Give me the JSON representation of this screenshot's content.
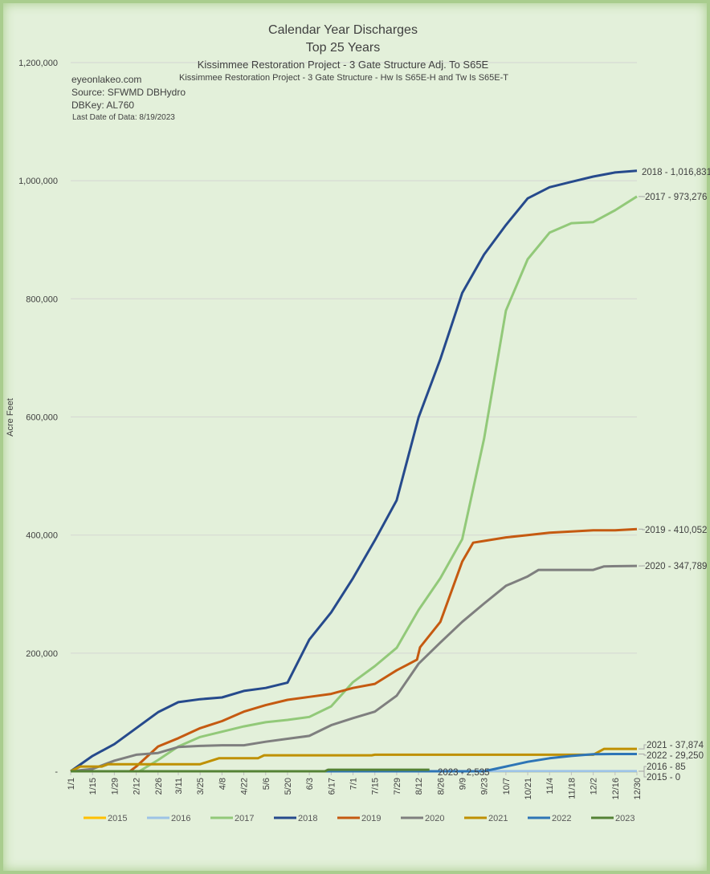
{
  "chart_data": {
    "type": "line",
    "title": "Calendar Year Discharges",
    "subtitle": "Top 25 Years",
    "subtitle2": "Kissimmee Restoration Project - 3 Gate Structure Adj. To S65E",
    "subtitle3": "Kissimmee Restoration Project - 3 Gate Structure - Hw Is S65E-H and Tw Is S65E-T",
    "notes": [
      "eyeonlakeo.com",
      "Source: SFWMD DBHydro",
      "DBKey: AL760",
      "Last Date of Data: 8/19/2023"
    ],
    "xlabel": "",
    "ylabel": "Acre Feet",
    "ylim": [
      0,
      1200000
    ],
    "xlim_days": [
      0,
      363
    ],
    "y_ticks": [
      {
        "value": 0,
        "label": "-"
      },
      {
        "value": 200000,
        "label": "200,000"
      },
      {
        "value": 400000,
        "label": "400,000"
      },
      {
        "value": 600000,
        "label": "600,000"
      },
      {
        "value": 800000,
        "label": "800,000"
      },
      {
        "value": 1000000,
        "label": "1,000,000"
      },
      {
        "value": 1200000,
        "label": "1,200,000"
      }
    ],
    "x_ticks": [
      {
        "day": 0,
        "label": "1/1"
      },
      {
        "day": 14,
        "label": "1/15"
      },
      {
        "day": 28,
        "label": "1/29"
      },
      {
        "day": 42,
        "label": "2/12"
      },
      {
        "day": 56,
        "label": "2/26"
      },
      {
        "day": 69,
        "label": "3/11"
      },
      {
        "day": 83,
        "label": "3/25"
      },
      {
        "day": 97,
        "label": "4/8"
      },
      {
        "day": 111,
        "label": "4/22"
      },
      {
        "day": 125,
        "label": "5/6"
      },
      {
        "day": 139,
        "label": "5/20"
      },
      {
        "day": 153,
        "label": "6/3"
      },
      {
        "day": 167,
        "label": "6/17"
      },
      {
        "day": 181,
        "label": "7/1"
      },
      {
        "day": 195,
        "label": "7/15"
      },
      {
        "day": 209,
        "label": "7/29"
      },
      {
        "day": 223,
        "label": "8/12"
      },
      {
        "day": 237,
        "label": "8/26"
      },
      {
        "day": 251,
        "label": "9/9"
      },
      {
        "day": 265,
        "label": "9/23"
      },
      {
        "day": 279,
        "label": "10/7"
      },
      {
        "day": 293,
        "label": "10/21"
      },
      {
        "day": 307,
        "label": "11/4"
      },
      {
        "day": 321,
        "label": "11/18"
      },
      {
        "day": 335,
        "label": "12/2"
      },
      {
        "day": 349,
        "label": "12/16"
      },
      {
        "day": 363,
        "label": "12/30"
      }
    ],
    "grid": true,
    "legend_position": "bottom",
    "series": [
      {
        "name": "2015",
        "color": "#ffc000",
        "end_label": "2015 - 0",
        "points": [
          [
            0,
            0
          ],
          [
            363,
            0
          ]
        ]
      },
      {
        "name": "2016",
        "color": "#9dc3e6",
        "end_label": "2016 - 85",
        "points": [
          [
            0,
            0
          ],
          [
            363,
            85
          ]
        ]
      },
      {
        "name": "2017",
        "color": "#92c979",
        "end_label": "2017 - 973,276",
        "points": [
          [
            0,
            0
          ],
          [
            44,
            0
          ],
          [
            56,
            19000
          ],
          [
            69,
            42000
          ],
          [
            83,
            58000
          ],
          [
            97,
            67000
          ],
          [
            111,
            76000
          ],
          [
            125,
            83000
          ],
          [
            139,
            87000
          ],
          [
            153,
            92000
          ],
          [
            167,
            110000
          ],
          [
            181,
            151000
          ],
          [
            195,
            178000
          ],
          [
            209,
            209000
          ],
          [
            223,
            273000
          ],
          [
            237,
            327000
          ],
          [
            251,
            393000
          ],
          [
            265,
            563000
          ],
          [
            279,
            780000
          ],
          [
            293,
            867000
          ],
          [
            307,
            912000
          ],
          [
            321,
            928000
          ],
          [
            335,
            930000
          ],
          [
            349,
            950000
          ],
          [
            363,
            973276
          ]
        ]
      },
      {
        "name": "2018",
        "color": "#264a8c",
        "end_label": "2018 - 1,016,831",
        "points": [
          [
            0,
            0
          ],
          [
            14,
            26000
          ],
          [
            28,
            46000
          ],
          [
            42,
            73000
          ],
          [
            56,
            100000
          ],
          [
            69,
            117000
          ],
          [
            83,
            122000
          ],
          [
            97,
            125000
          ],
          [
            111,
            136000
          ],
          [
            125,
            141000
          ],
          [
            139,
            150000
          ],
          [
            153,
            223000
          ],
          [
            167,
            269000
          ],
          [
            181,
            327000
          ],
          [
            195,
            391000
          ],
          [
            209,
            459000
          ],
          [
            223,
            599000
          ],
          [
            237,
            698000
          ],
          [
            251,
            810000
          ],
          [
            265,
            875000
          ],
          [
            279,
            925000
          ],
          [
            293,
            970000
          ],
          [
            307,
            989000
          ],
          [
            321,
            998000
          ],
          [
            335,
            1007000
          ],
          [
            349,
            1014000
          ],
          [
            363,
            1016831
          ]
        ]
      },
      {
        "name": "2019",
        "color": "#c55a11",
        "end_label": "2019 - 410,052",
        "points": [
          [
            0,
            0
          ],
          [
            38,
            0
          ],
          [
            42,
            8000
          ],
          [
            56,
            42000
          ],
          [
            69,
            56000
          ],
          [
            83,
            73000
          ],
          [
            97,
            85000
          ],
          [
            111,
            101000
          ],
          [
            125,
            112000
          ],
          [
            139,
            121000
          ],
          [
            153,
            126000
          ],
          [
            167,
            131000
          ],
          [
            181,
            141000
          ],
          [
            195,
            148000
          ],
          [
            209,
            171000
          ],
          [
            222,
            189000
          ],
          [
            224,
            210000
          ],
          [
            237,
            253000
          ],
          [
            251,
            355000
          ],
          [
            258,
            387000
          ],
          [
            265,
            390000
          ],
          [
            279,
            396000
          ],
          [
            293,
            400000
          ],
          [
            307,
            404000
          ],
          [
            321,
            406000
          ],
          [
            335,
            408000
          ],
          [
            349,
            408000
          ],
          [
            363,
            410052
          ]
        ]
      },
      {
        "name": "2020",
        "color": "#7f7f7f",
        "end_label": "2020 - 347,789",
        "points": [
          [
            0,
            0
          ],
          [
            14,
            4000
          ],
          [
            28,
            18000
          ],
          [
            42,
            28000
          ],
          [
            56,
            31000
          ],
          [
            69,
            41000
          ],
          [
            83,
            43000
          ],
          [
            97,
            44000
          ],
          [
            111,
            44000
          ],
          [
            125,
            50000
          ],
          [
            139,
            55000
          ],
          [
            153,
            60000
          ],
          [
            167,
            78000
          ],
          [
            181,
            90000
          ],
          [
            195,
            101000
          ],
          [
            209,
            128000
          ],
          [
            223,
            182000
          ],
          [
            237,
            218000
          ],
          [
            251,
            253000
          ],
          [
            265,
            284000
          ],
          [
            279,
            314000
          ],
          [
            293,
            330000
          ],
          [
            300,
            341000
          ],
          [
            335,
            341000
          ],
          [
            342,
            347000
          ],
          [
            363,
            347789
          ]
        ]
      },
      {
        "name": "2021",
        "color": "#bf9000",
        "end_label": "2021 - 37,874",
        "points": [
          [
            0,
            0
          ],
          [
            6,
            8000
          ],
          [
            20,
            8000
          ],
          [
            24,
            12000
          ],
          [
            83,
            12000
          ],
          [
            95,
            22000
          ],
          [
            120,
            22000
          ],
          [
            124,
            27000
          ],
          [
            193,
            27000
          ],
          [
            195,
            28000
          ],
          [
            335,
            28000
          ],
          [
            342,
            37874
          ],
          [
            363,
            37874
          ]
        ]
      },
      {
        "name": "2022",
        "color": "#2e75b6",
        "end_label": "2022 - 29,250",
        "points": [
          [
            0,
            0
          ],
          [
            265,
            0
          ],
          [
            279,
            8000
          ],
          [
            293,
            16000
          ],
          [
            307,
            22000
          ],
          [
            321,
            26000
          ],
          [
            335,
            29000
          ],
          [
            349,
            29250
          ],
          [
            363,
            29250
          ]
        ]
      },
      {
        "name": "2023",
        "color": "#548235",
        "end_label": "2023 - 2,535",
        "points": [
          [
            0,
            0
          ],
          [
            163,
            0
          ],
          [
            165,
            2535
          ],
          [
            230,
            2535
          ]
        ]
      }
    ]
  }
}
